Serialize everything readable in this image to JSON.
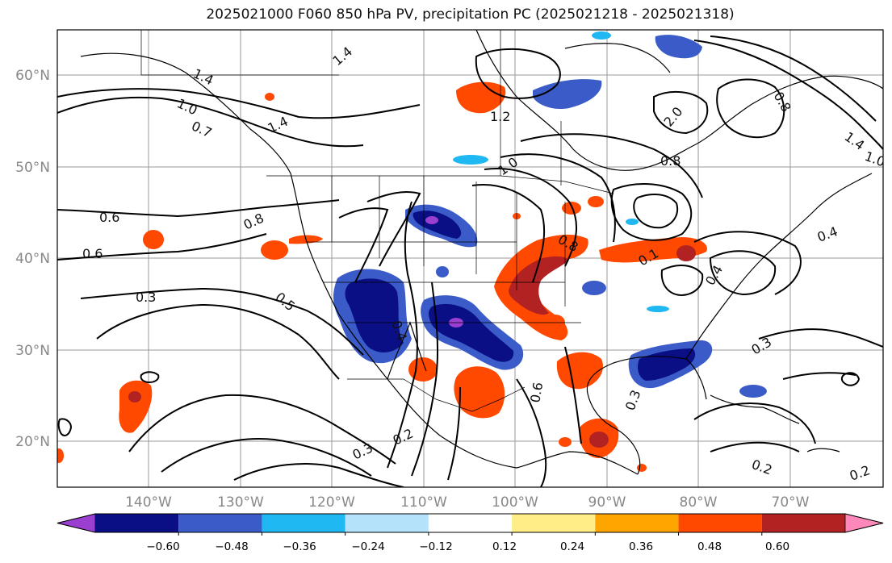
{
  "title": "2025021000 F060 850 hPa PV, precipitation PC (2025021218 - 2025021318)",
  "lat_labels": [
    "60°N",
    "50°N",
    "40°N",
    "30°N",
    "20°N"
  ],
  "lon_labels": [
    "140°W",
    "130°W",
    "120°W",
    "110°W",
    "100°W",
    "90°W",
    "80°W",
    "70°W"
  ],
  "colorbar": {
    "ticks": [
      "−0.60",
      "−0.48",
      "−0.36",
      "−0.24",
      "−0.12",
      "0.12",
      "0.24",
      "0.36",
      "0.48",
      "0.60"
    ],
    "colors": [
      "#9a3fd0",
      "#0a0f86",
      "#3b5cc8",
      "#1fb8f2",
      "#b5e2fb",
      "#ffffff",
      "#ffee88",
      "#ffa500",
      "#ff4800",
      "#b22222",
      "#ff88bb"
    ]
  },
  "contour_labels": [
    "1.4",
    "1.0",
    "0.7",
    "1.4",
    "1.4",
    "1.2",
    "1.0",
    "0.8",
    "2.0",
    "0.8",
    "1.4",
    "1.0",
    "0.6",
    "0.6",
    "0.8",
    "0.3",
    "0.5",
    "0.4",
    "0.4",
    "0.8",
    "0.1",
    "0.4",
    "0.3",
    "0.6",
    "0.3",
    "0.3",
    "0.2",
    "0.2",
    "0.2"
  ]
}
